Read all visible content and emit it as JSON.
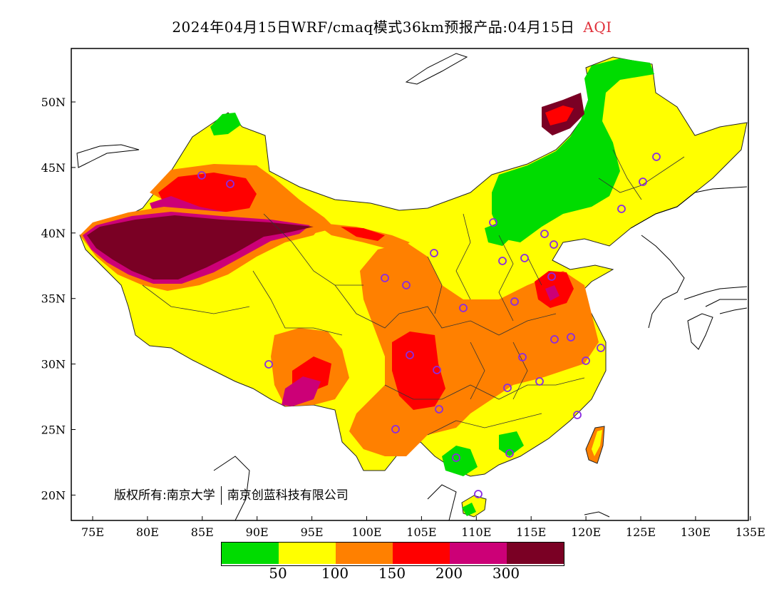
{
  "title": {
    "main": "2024年04月15日WRF/cmaq模式36km预报产品:04月15日",
    "variable": "AQI"
  },
  "copyright": {
    "owner_label": "版权所有:南京大学",
    "company": "南京创蓝科技有限公司"
  },
  "axes": {
    "x_ticks": [
      "75E",
      "80E",
      "85E",
      "90E",
      "95E",
      "100E",
      "105E",
      "110E",
      "115E",
      "120E",
      "125E",
      "130E",
      "135E"
    ],
    "y_ticks": [
      "50N",
      "45N",
      "40N",
      "35N",
      "30N",
      "25N",
      "20N"
    ]
  },
  "legend": {
    "colors": [
      "#00dc00",
      "#ffff00",
      "#ff8000",
      "#ff0000",
      "#cc0077",
      "#7a0024"
    ],
    "breaks": [
      "50",
      "100",
      "150",
      "200",
      "300"
    ]
  },
  "colors": {
    "title_accent": "#e0303a",
    "station_marker": "#8a2be2"
  }
}
